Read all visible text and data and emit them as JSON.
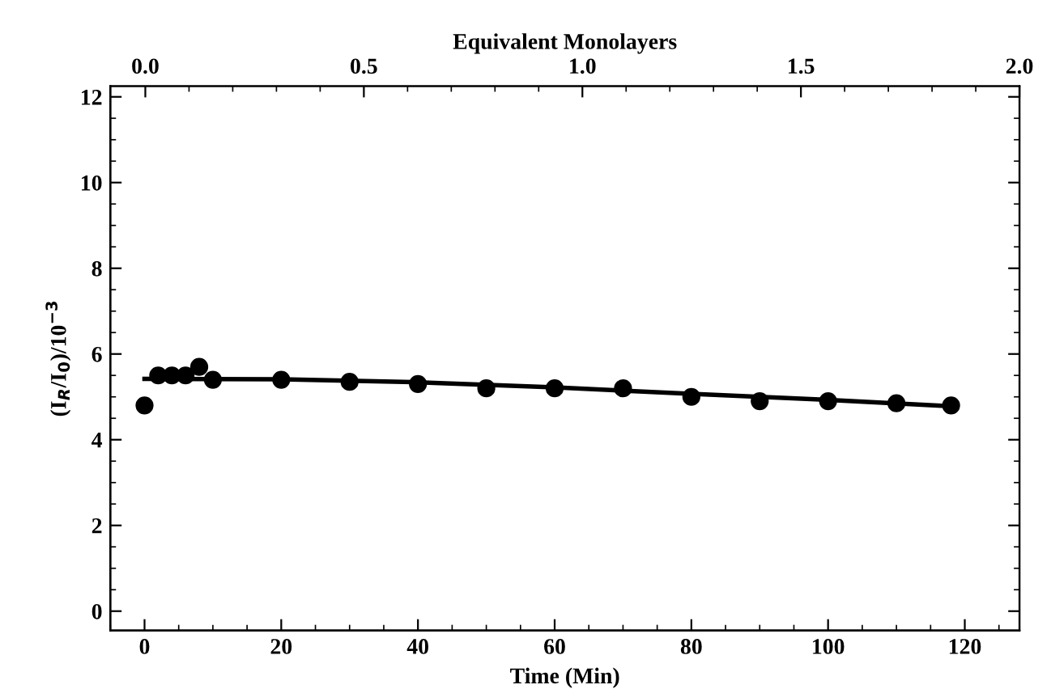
{
  "chart_data": {
    "type": "scatter",
    "xlabel": "Time (Min)",
    "ylabel": "(I$_{R}$/I$_{0}$)/10$^{−3}$",
    "x2label": "Equivalent Monolayers",
    "series": [
      {
        "color": "#000000",
        "marker": "circle",
        "x": [
          0,
          2,
          4,
          6,
          8,
          10,
          20,
          30,
          40,
          50,
          60,
          70,
          80,
          90,
          100,
          110,
          118
        ],
        "values": [
          4.8,
          5.5,
          5.5,
          5.5,
          5.7,
          5.4,
          5.4,
          5.35,
          5.3,
          5.2,
          5.2,
          5.2,
          5.0,
          4.9,
          4.9,
          4.85,
          4.8
        ]
      },
      {
        "type": "line",
        "color": "#000000",
        "x": [
          0,
          20,
          40,
          60,
          80,
          100,
          118
        ],
        "values": [
          5.42,
          5.41,
          5.34,
          5.22,
          5.07,
          4.93,
          4.78
        ]
      }
    ],
    "xlim": [
      -5,
      128
    ],
    "xticks": [
      0,
      20,
      40,
      60,
      80,
      100,
      120
    ],
    "x2lim": [
      -0.08,
      2.0
    ],
    "x2ticks": [
      {
        "value": 0,
        "label": "0.0"
      },
      0.5,
      {
        "value": 1,
        "label": "1.0"
      },
      1.5,
      {
        "value": 2,
        "label": "2.0"
      }
    ],
    "ylim": [
      -0.45,
      12.25
    ],
    "yticks": [
      0,
      2,
      4,
      6,
      8,
      10,
      12
    ],
    "grid": false,
    "legend": false
  }
}
